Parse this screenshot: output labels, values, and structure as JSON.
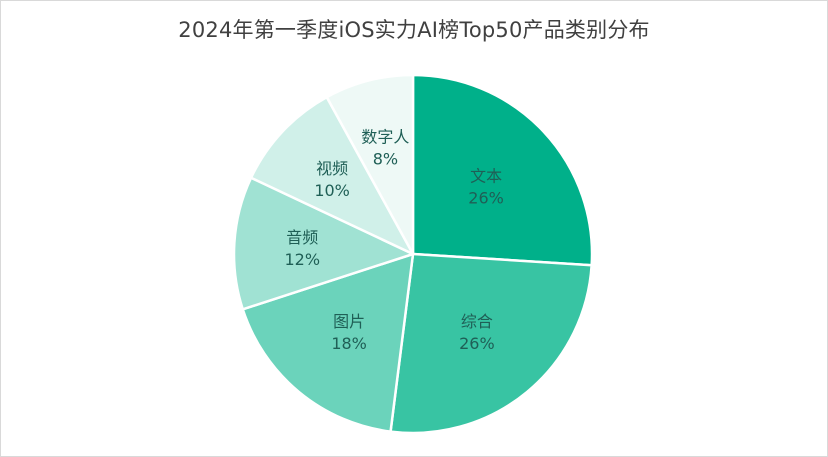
{
  "chart_data": {
    "type": "pie",
    "title": "2024年第一季度iOS实力AI榜Top50产品类别分布",
    "start_angle_deg": 0,
    "direction": "clockwise",
    "legend": "none",
    "data_labels": "category and percentage inside slices",
    "categories": [
      "文本",
      "综合",
      "图片",
      "音频",
      "视频",
      "数字人"
    ],
    "values": [
      26,
      26,
      18,
      12,
      10,
      8
    ],
    "labels_pct": [
      "26%",
      "26%",
      "18%",
      "12%",
      "10%",
      "8%"
    ],
    "colors": [
      "#00b08a",
      "#38c4a3",
      "#6bd3bb",
      "#a0e2d3",
      "#d0f0e9",
      "#eef9f6"
    ]
  }
}
